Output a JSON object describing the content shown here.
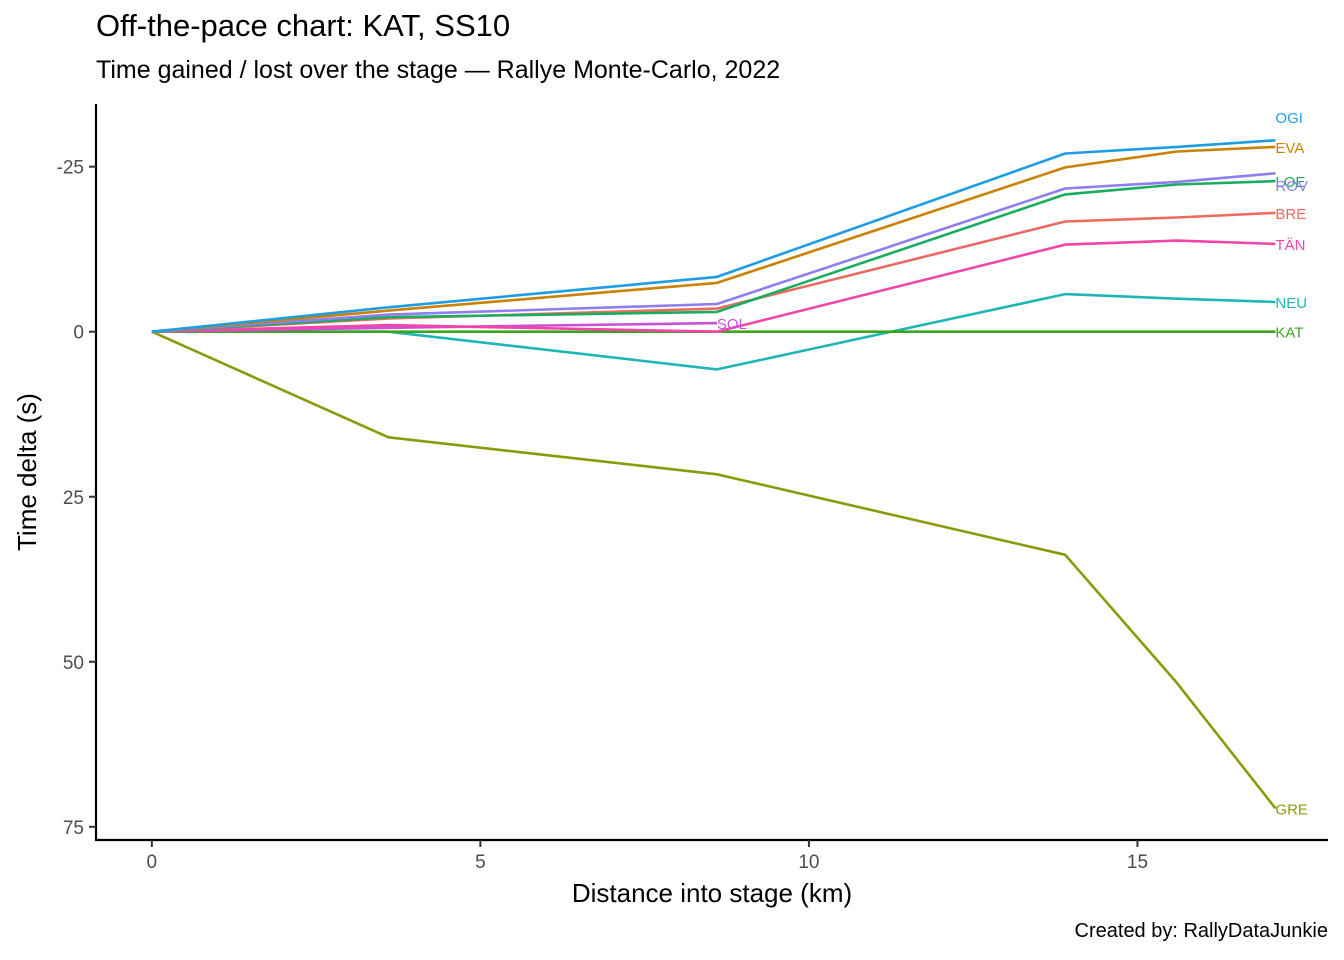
{
  "title": "Off-the-pace chart: KAT, SS10",
  "subtitle": "Time gained / lost over the stage — Rallye Monte-Carlo, 2022",
  "caption": "Created by: RallyDataJunkie",
  "chart_data": {
    "type": "line",
    "xlabel": "Distance into stage (km)",
    "ylabel": "Time delta (s)",
    "xlim": [
      -0.85,
      17.9
    ],
    "ylim": [
      -34.5,
      77.0
    ],
    "y_reversed": true,
    "grid": false,
    "legend": "none (labels at line ends)",
    "xticks": [
      0,
      5,
      10,
      15
    ],
    "yticks": [
      -25,
      0,
      25,
      50,
      75
    ],
    "ytick_labels": [
      "-25",
      "0",
      "25",
      "50",
      "75"
    ],
    "series": [
      {
        "name": "GRE",
        "color": "#8b9a0a",
        "x": [
          0,
          3.6,
          8.6,
          13.9,
          15.6,
          17.1
        ],
        "y": [
          0,
          16,
          21.6,
          33.8,
          53.2,
          72.2
        ]
      },
      {
        "name": "NEU",
        "color": "#1fb5b5",
        "x": [
          0,
          3.6,
          8.6,
          13.9,
          15.6,
          17.1
        ],
        "y": [
          0,
          0,
          5.7,
          -5.7,
          -5.0,
          -4.5
        ]
      },
      {
        "name": "KAT",
        "color": "#3aa51f",
        "x": [
          0,
          3.6,
          8.6,
          13.9,
          15.6,
          17.1
        ],
        "y": [
          0,
          0,
          0,
          0,
          0,
          0
        ]
      },
      {
        "name": "SOL",
        "color": "#cc4fd6",
        "x": [
          0,
          3.6,
          8.6
        ],
        "y": [
          0,
          -0.6,
          -1.3
        ]
      },
      {
        "name": "TÄN",
        "color": "#f245a8",
        "x": [
          0,
          3.6,
          8.6,
          13.9,
          15.6,
          17.1
        ],
        "y": [
          0,
          -1.0,
          0,
          -13.2,
          -13.8,
          -13.3
        ]
      },
      {
        "name": "BRE",
        "color": "#ec6b5e",
        "x": [
          0,
          3.6,
          8.6,
          13.9,
          15.6,
          17.1
        ],
        "y": [
          0,
          -2.0,
          -3.5,
          -16.7,
          -17.3,
          -18.0
        ]
      },
      {
        "name": "LOE",
        "color": "#1aad61",
        "x": [
          0,
          3.6,
          8.6,
          13.9,
          15.6,
          17.1
        ],
        "y": [
          0,
          -2.2,
          -3.0,
          -20.8,
          -22.3,
          -22.8
        ]
      },
      {
        "name": "ROV",
        "color": "#8e7ef0",
        "x": [
          0,
          3.6,
          8.6,
          13.9,
          15.6,
          17.1
        ],
        "y": [
          0,
          -2.6,
          -4.2,
          -21.7,
          -22.7,
          -24.0
        ]
      },
      {
        "name": "EVA",
        "color": "#c98205",
        "x": [
          0,
          3.6,
          8.6,
          13.9,
          15.6,
          17.1
        ],
        "y": [
          0,
          -3.2,
          -7.4,
          -24.9,
          -27.3,
          -28.0
        ]
      },
      {
        "name": "OGI",
        "color": "#1e9de3",
        "x": [
          0,
          3.6,
          8.6,
          13.9,
          15.6,
          17.1
        ],
        "y": [
          0,
          -3.7,
          -8.3,
          -27.0,
          -28.0,
          -29.0
        ]
      }
    ],
    "label_offsets": {
      "OGI": -3.5,
      "EVA": 0,
      "ROV": 1.8,
      "LOE": 0,
      "BRE": 0,
      "TÄN": 0,
      "NEU": 0,
      "KAT": 0,
      "SOL": 0,
      "GRE": 0
    }
  }
}
